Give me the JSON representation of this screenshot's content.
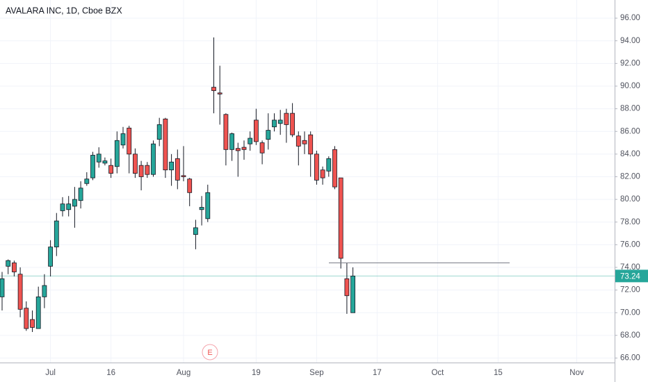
{
  "chart_data": {
    "type": "candlestick",
    "title": "AVALARA INC, 1D, Cboe BZX",
    "up_color": "#26a69a",
    "down_color": "#ef5350",
    "grid": true,
    "categories": [
      null,
      null,
      null,
      null,
      null,
      null,
      null,
      null,
      "Jul",
      null,
      null,
      null,
      null,
      null,
      null,
      null,
      null,
      null,
      "16",
      null,
      null,
      null,
      null,
      null,
      null,
      null,
      null,
      null,
      null,
      null,
      "Aug",
      null,
      null,
      null,
      null,
      null,
      null,
      null,
      null,
      null,
      null,
      null,
      "19",
      null,
      null,
      null,
      null,
      null,
      null,
      null,
      null,
      null,
      "Sep",
      null,
      null,
      null,
      null,
      null,
      null,
      null,
      null,
      null,
      "17",
      null,
      null,
      null,
      null,
      null,
      null,
      null,
      null,
      null,
      "Oct",
      null,
      null,
      null,
      null,
      null,
      null,
      null,
      null,
      null,
      "15",
      null,
      null,
      null,
      null,
      null,
      null,
      null,
      null,
      null,
      null,
      null,
      null,
      "Nov"
    ],
    "open": [
      71.4,
      74.1,
      74.4,
      73.4,
      70.4,
      69.4,
      68.6,
      71.4,
      74.1,
      75.8,
      79.0,
      79.1,
      79.4,
      79.9,
      81.4,
      81.9,
      83.3,
      83.2,
      83.0,
      82.9,
      84.8,
      86.3,
      84.0,
      83.0,
      83.0,
      82.2,
      85.3,
      87.1,
      82.6,
      83.6,
      82.1,
      81.8,
      76.9,
      79.1,
      78.3,
      89.9,
      89.4,
      87.5,
      84.4,
      84.5,
      84.6,
      84.9,
      87.0,
      85.0,
      85.3,
      86.4,
      86.7,
      87.6,
      87.6,
      85.6,
      85.2,
      85.7,
      84.0,
      82.6,
      82.5,
      84.4,
      81.9,
      73.0,
      70.0,
      null,
      null,
      null,
      null,
      null,
      null,
      null,
      null,
      null,
      null,
      null,
      null,
      null,
      null,
      null,
      null,
      null,
      null,
      null,
      null,
      null,
      null,
      null,
      null,
      null,
      null,
      null,
      null,
      null,
      null,
      null,
      null,
      null,
      null,
      null,
      null,
      null
    ],
    "high": [
      73.6,
      74.7,
      74.6,
      74.0,
      71.0,
      70.2,
      72.3,
      73.4,
      76.4,
      78.8,
      80.2,
      80.3,
      81.1,
      81.6,
      82.4,
      84.2,
      84.6,
      83.7,
      83.6,
      86.0,
      86.4,
      86.5,
      84.5,
      83.4,
      83.3,
      85.2,
      87.2,
      87.2,
      84.0,
      84.4,
      84.7,
      81.9,
      78.2,
      80.3,
      81.3,
      94.3,
      91.8,
      87.6,
      85.9,
      85.0,
      85.2,
      86.0,
      88.0,
      85.2,
      87.6,
      87.6,
      87.9,
      88.0,
      88.5,
      86.0,
      86.0,
      86.0,
      84.3,
      82.9,
      83.8,
      84.7,
      81.9,
      74.4,
      74.0,
      null,
      null,
      null,
      null,
      null,
      null,
      null,
      null,
      null,
      null,
      null,
      null,
      null,
      null,
      null,
      null,
      null,
      null,
      null,
      null,
      null,
      null,
      null,
      null,
      null,
      null,
      null,
      null,
      null,
      null,
      null,
      null,
      null,
      null,
      null,
      null,
      null
    ],
    "low": [
      70.2,
      73.4,
      73.2,
      69.6,
      68.4,
      68.3,
      68.6,
      70.4,
      73.2,
      75.0,
      78.5,
      78.5,
      77.5,
      79.2,
      81.2,
      81.7,
      82.8,
      83.0,
      81.9,
      82.3,
      84.5,
      82.3,
      81.9,
      80.8,
      81.9,
      82.0,
      84.7,
      81.9,
      81.2,
      80.9,
      81.6,
      79.4,
      75.6,
      77.7,
      78.0,
      87.6,
      86.6,
      83.0,
      83.4,
      82.0,
      83.5,
      84.3,
      84.8,
      83.1,
      84.4,
      86.0,
      85.7,
      85.0,
      85.5,
      83.0,
      84.0,
      82.0,
      81.3,
      81.3,
      82.0,
      80.9,
      73.9,
      69.9,
      70.0,
      null,
      null,
      null,
      null,
      null,
      null,
      null,
      null,
      null,
      null,
      null,
      null,
      null,
      null,
      null,
      null,
      null,
      null,
      null,
      null,
      null,
      null,
      null,
      null,
      null,
      null,
      null,
      null,
      null,
      null,
      null,
      null,
      null,
      null,
      null,
      null,
      null
    ],
    "close": [
      73.0,
      74.6,
      73.6,
      70.3,
      68.6,
      68.7,
      71.4,
      72.4,
      75.8,
      78.1,
      79.6,
      79.6,
      80.0,
      81.0,
      81.8,
      83.9,
      84.0,
      83.4,
      82.3,
      85.2,
      85.8,
      84.0,
      82.3,
      82.0,
      82.2,
      84.9,
      86.6,
      82.6,
      83.3,
      81.7,
      82.0,
      80.6,
      77.5,
      79.3,
      80.6,
      89.6,
      89.3,
      84.4,
      85.8,
      84.3,
      84.4,
      85.4,
      85.1,
      84.1,
      86.1,
      87.0,
      87.0,
      86.6,
      85.7,
      84.7,
      84.9,
      84.0,
      81.7,
      81.9,
      83.6,
      81.1,
      74.8,
      71.5,
      73.24,
      null,
      null,
      null,
      null,
      null,
      null,
      null,
      null,
      null,
      null,
      null,
      null,
      null,
      null,
      null,
      null,
      null,
      null,
      null,
      null,
      null,
      null,
      null,
      null,
      null,
      null,
      null,
      null,
      null,
      null,
      null,
      null,
      null,
      null,
      null,
      null,
      null
    ],
    "last_price": 73.24,
    "horizontal_line": 74.4,
    "event_label": "E",
    "ylim": [
      65.6,
      97.6
    ],
    "yticks": [
      {
        "value": 66,
        "label": "66.00"
      },
      {
        "value": 68,
        "label": "68.00"
      },
      {
        "value": 70,
        "label": "70.00"
      },
      {
        "value": 72,
        "label": "72.00"
      },
      {
        "value": 74,
        "label": "74.00"
      },
      {
        "value": 76,
        "label": "76.00"
      },
      {
        "value": 78,
        "label": "78.00"
      },
      {
        "value": 80,
        "label": "80.00"
      },
      {
        "value": 82,
        "label": "82.00"
      },
      {
        "value": 84,
        "label": "84.00"
      },
      {
        "value": 86,
        "label": "86.00"
      },
      {
        "value": 88,
        "label": "88.00"
      },
      {
        "value": 90,
        "label": "90.00"
      },
      {
        "value": 92,
        "label": "92.00"
      },
      {
        "value": 94,
        "label": "94.00"
      },
      {
        "value": 96,
        "label": "96.00"
      }
    ]
  }
}
